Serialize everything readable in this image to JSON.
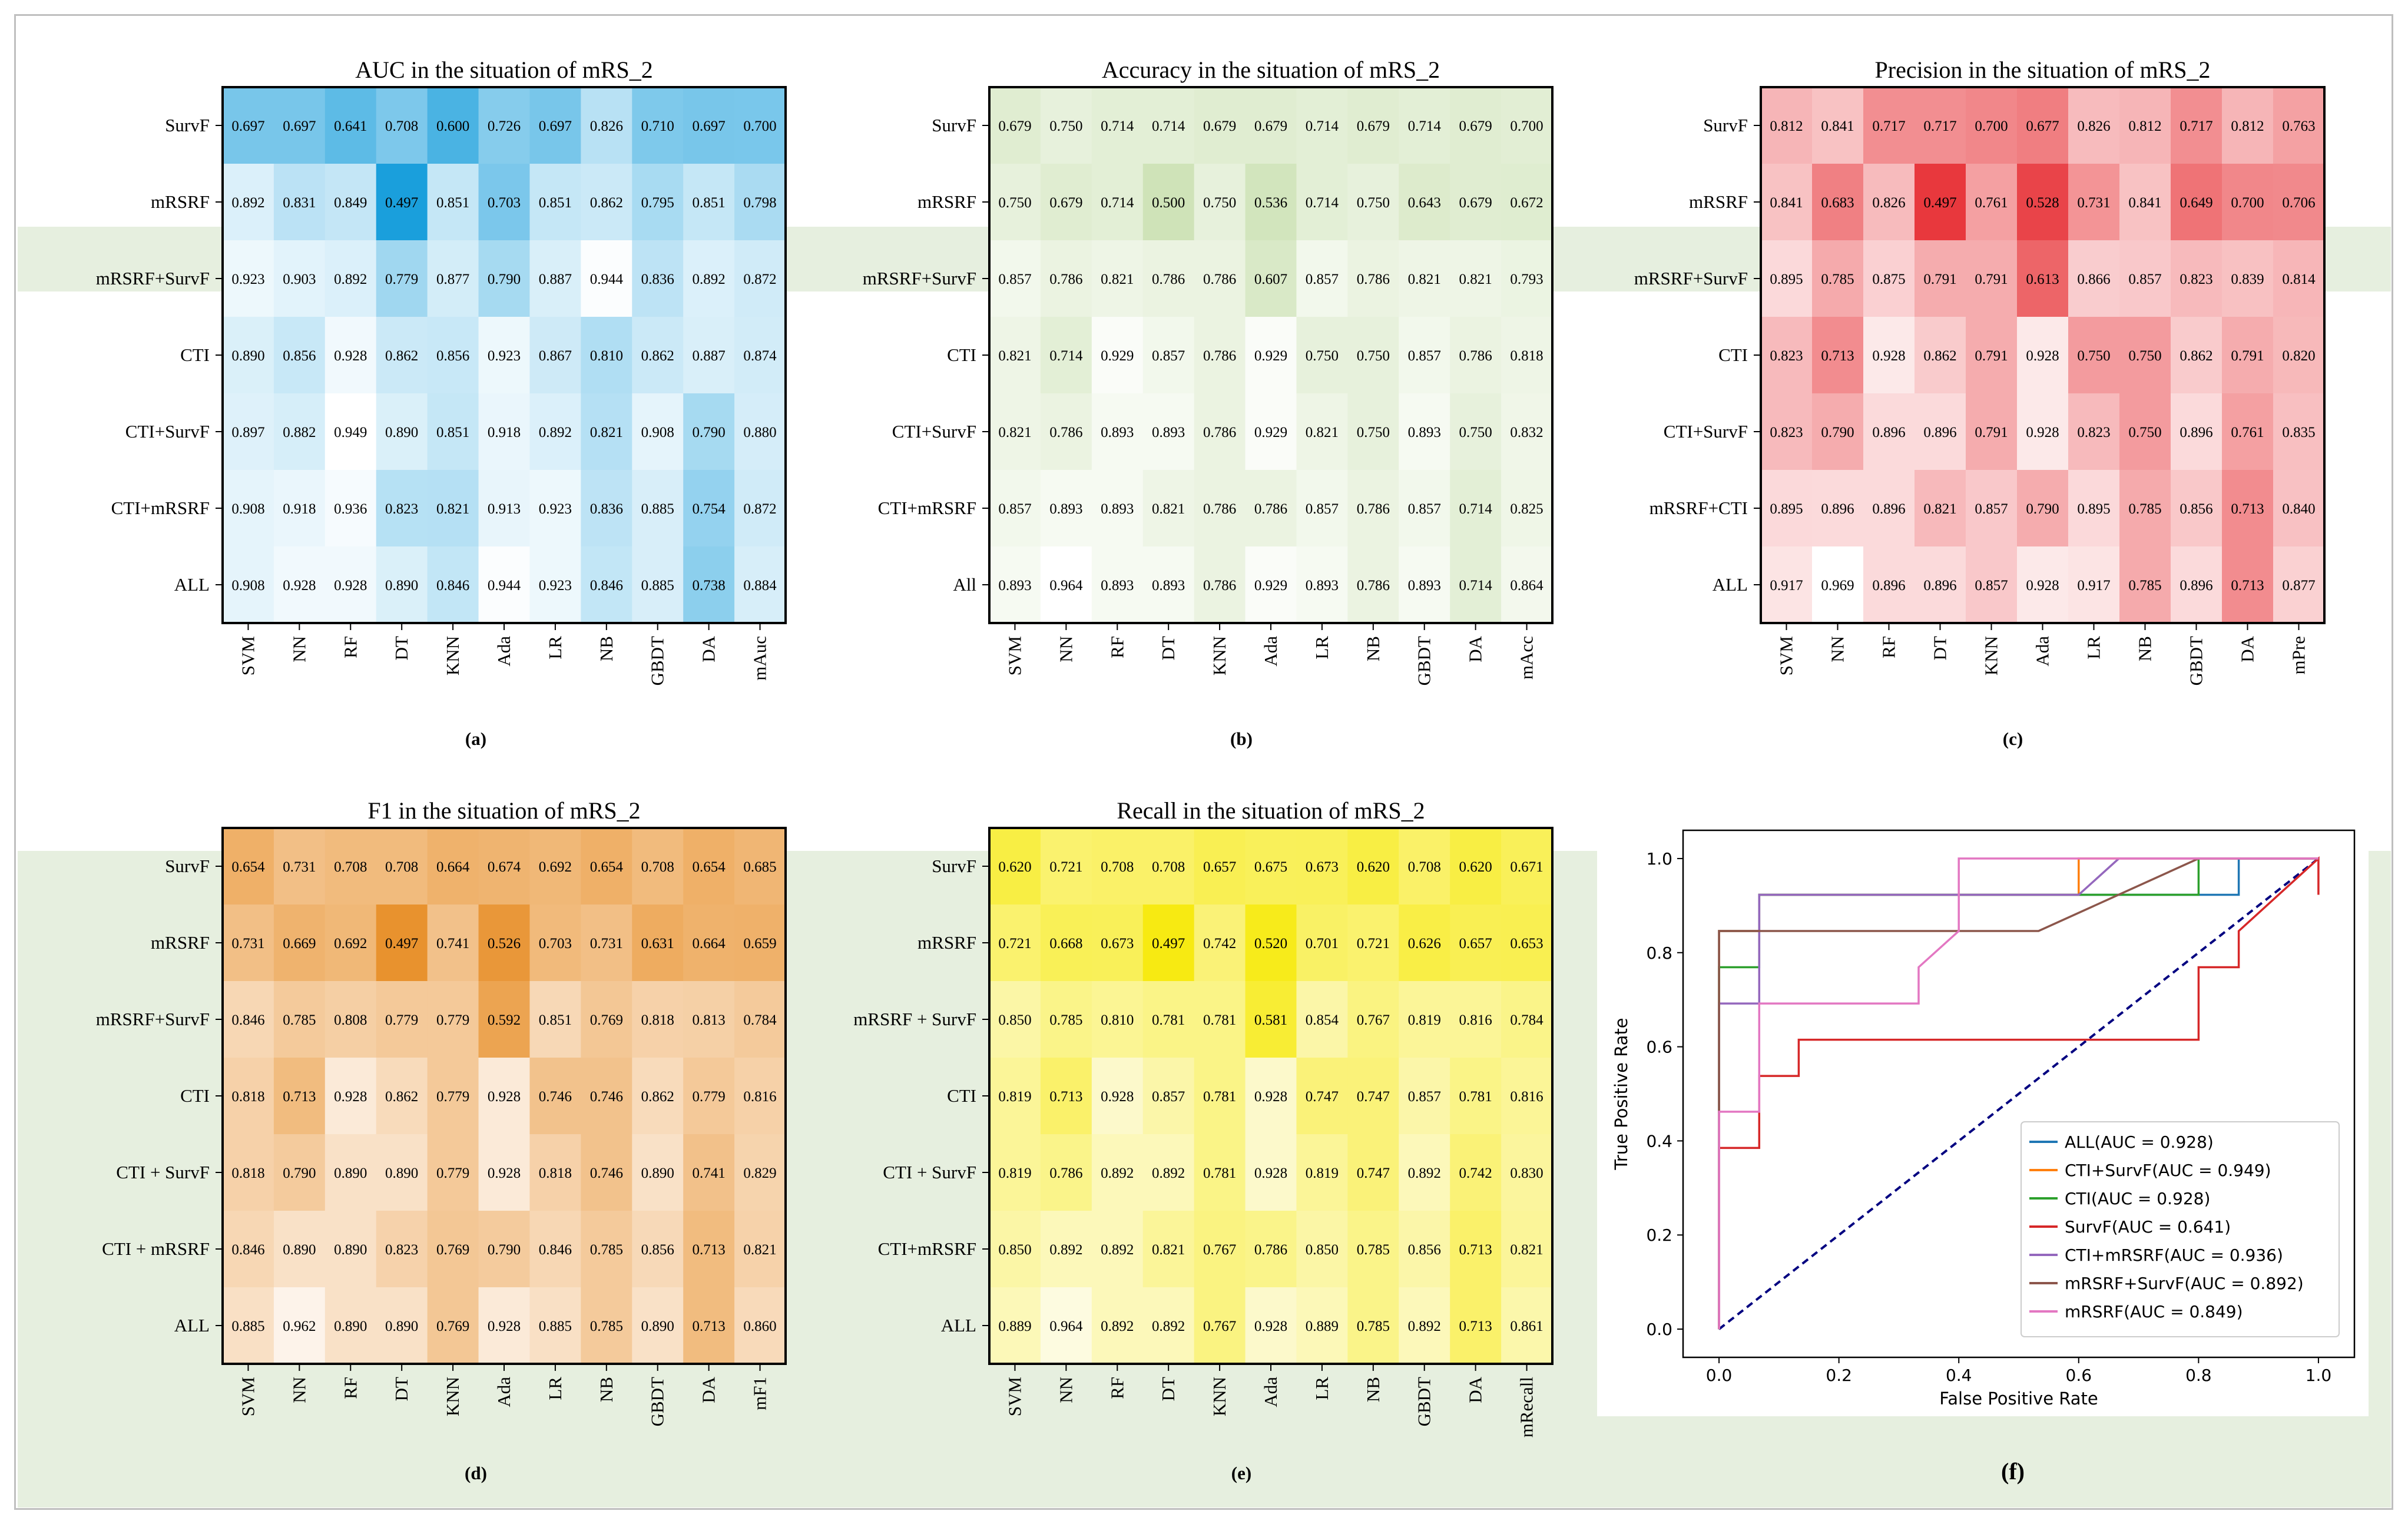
{
  "chart_data": [
    {
      "type": "heatmap",
      "title": "AUC in the situation of mRS_2",
      "panel_label": "(a)",
      "rows": [
        "SurvF",
        "mRSRF",
        "mRSRF+SurvF",
        "CTI",
        "CTI+SurvF",
        "CTI+mRSRF",
        "ALL"
      ],
      "columns": [
        "SVM",
        "NN",
        "RF",
        "DT",
        "KNN",
        "Ada",
        "LR",
        "NB",
        "GBDT",
        "DA",
        "mAuc"
      ],
      "values": [
        [
          0.697,
          0.697,
          0.641,
          0.708,
          0.6,
          0.726,
          0.697,
          0.826,
          0.71,
          0.697,
          0.7
        ],
        [
          0.892,
          0.831,
          0.849,
          0.497,
          0.851,
          0.703,
          0.851,
          0.862,
          0.795,
          0.851,
          0.798
        ],
        [
          0.923,
          0.903,
          0.892,
          0.779,
          0.877,
          0.79,
          0.887,
          0.944,
          0.836,
          0.892,
          0.872
        ],
        [
          0.89,
          0.856,
          0.928,
          0.862,
          0.856,
          0.923,
          0.867,
          0.81,
          0.862,
          0.887,
          0.874
        ],
        [
          0.897,
          0.882,
          0.949,
          0.89,
          0.851,
          0.918,
          0.892,
          0.821,
          0.908,
          0.79,
          0.88
        ],
        [
          0.908,
          0.918,
          0.936,
          0.823,
          0.821,
          0.913,
          0.923,
          0.836,
          0.885,
          0.754,
          0.872
        ],
        [
          0.908,
          0.928,
          0.928,
          0.89,
          0.846,
          0.944,
          0.923,
          0.846,
          0.885,
          0.738,
          0.884
        ]
      ],
      "color_high": "#1a9fdc",
      "color_low": "#ffffff"
    },
    {
      "type": "heatmap",
      "title": "Accuracy in the situation of mRS_2",
      "panel_label": "(b)",
      "rows": [
        "SurvF",
        "mRSRF",
        "mRSRF+SurvF",
        "CTI",
        "CTI+SurvF",
        "CTI+mRSRF",
        "All"
      ],
      "columns": [
        "SVM",
        "NN",
        "RF",
        "DT",
        "KNN",
        "Ada",
        "LR",
        "NB",
        "GBDT",
        "DA",
        "mAcc"
      ],
      "values": [
        [
          0.679,
          0.75,
          0.714,
          0.714,
          0.679,
          0.679,
          0.714,
          0.679,
          0.714,
          0.679,
          0.7
        ],
        [
          0.75,
          0.679,
          0.714,
          0.5,
          0.75,
          0.536,
          0.714,
          0.75,
          0.643,
          0.679,
          0.672
        ],
        [
          0.857,
          0.786,
          0.821,
          0.786,
          0.786,
          0.607,
          0.857,
          0.786,
          0.821,
          0.821,
          0.793
        ],
        [
          0.821,
          0.714,
          0.929,
          0.857,
          0.786,
          0.929,
          0.75,
          0.75,
          0.857,
          0.786,
          0.818
        ],
        [
          0.821,
          0.786,
          0.893,
          0.893,
          0.786,
          0.929,
          0.821,
          0.75,
          0.893,
          0.75,
          0.832
        ],
        [
          0.857,
          0.893,
          0.893,
          0.821,
          0.786,
          0.786,
          0.857,
          0.786,
          0.857,
          0.714,
          0.825
        ],
        [
          0.893,
          0.964,
          0.893,
          0.893,
          0.786,
          0.929,
          0.893,
          0.786,
          0.893,
          0.714,
          0.864
        ]
      ],
      "color_high": "#cfe3b8",
      "color_low": "#ffffff"
    },
    {
      "type": "heatmap",
      "title": "Precision in the situation of mRS_2",
      "panel_label": "(c)",
      "rows": [
        "SurvF",
        "mRSRF",
        "mRSRF+SurvF",
        "CTI",
        "CTI+SurvF",
        "mRSRF+CTI",
        "ALL"
      ],
      "columns": [
        "SVM",
        "NN",
        "RF",
        "DT",
        "KNN",
        "Ada",
        "LR",
        "NB",
        "GBDT",
        "DA",
        "mPre"
      ],
      "values": [
        [
          0.812,
          0.841,
          0.717,
          0.717,
          0.7,
          0.677,
          0.826,
          0.812,
          0.717,
          0.812,
          0.763
        ],
        [
          0.841,
          0.683,
          0.826,
          0.497,
          0.761,
          0.528,
          0.731,
          0.841,
          0.649,
          0.7,
          0.706
        ],
        [
          0.895,
          0.785,
          0.875,
          0.791,
          0.791,
          0.613,
          0.866,
          0.857,
          0.823,
          0.839,
          0.814
        ],
        [
          0.823,
          0.713,
          0.928,
          0.862,
          0.791,
          0.928,
          0.75,
          0.75,
          0.862,
          0.791,
          0.82
        ],
        [
          0.823,
          0.79,
          0.896,
          0.896,
          0.791,
          0.928,
          0.823,
          0.75,
          0.896,
          0.761,
          0.835
        ],
        [
          0.895,
          0.896,
          0.896,
          0.821,
          0.857,
          0.79,
          0.895,
          0.785,
          0.856,
          0.713,
          0.84
        ],
        [
          0.917,
          0.969,
          0.896,
          0.896,
          0.857,
          0.928,
          0.917,
          0.785,
          0.896,
          0.713,
          0.877
        ]
      ],
      "color_high": "#e8383d",
      "color_low": "#ffffff"
    },
    {
      "type": "heatmap",
      "title": "F1 in the situation of mRS_2",
      "panel_label": "(d)",
      "rows": [
        "SurvF",
        "mRSRF",
        "mRSRF+SurvF",
        "CTI",
        "CTI + SurvF",
        "CTI + mRSRF",
        "ALL"
      ],
      "columns": [
        "SVM",
        "NN",
        "RF",
        "DT",
        "KNN",
        "Ada",
        "LR",
        "NB",
        "GBDT",
        "DA",
        "mF1"
      ],
      "values": [
        [
          0.654,
          0.731,
          0.708,
          0.708,
          0.664,
          0.674,
          0.692,
          0.654,
          0.708,
          0.654,
          0.685
        ],
        [
          0.731,
          0.669,
          0.692,
          0.497,
          0.741,
          0.526,
          0.703,
          0.731,
          0.631,
          0.664,
          0.659
        ],
        [
          0.846,
          0.785,
          0.808,
          0.779,
          0.779,
          0.592,
          0.851,
          0.769,
          0.818,
          0.813,
          0.784
        ],
        [
          0.818,
          0.713,
          0.928,
          0.862,
          0.779,
          0.928,
          0.746,
          0.746,
          0.862,
          0.779,
          0.816
        ],
        [
          0.818,
          0.79,
          0.89,
          0.89,
          0.779,
          0.928,
          0.818,
          0.746,
          0.89,
          0.741,
          0.829
        ],
        [
          0.846,
          0.89,
          0.89,
          0.823,
          0.769,
          0.79,
          0.846,
          0.785,
          0.856,
          0.713,
          0.821
        ],
        [
          0.885,
          0.962,
          0.89,
          0.89,
          0.769,
          0.928,
          0.885,
          0.785,
          0.89,
          0.713,
          0.86
        ]
      ],
      "color_high": "#e8922e",
      "color_low": "#fdf3ea"
    },
    {
      "type": "heatmap",
      "title": "Recall in the situation of mRS_2",
      "panel_label": "(e)",
      "rows": [
        "SurvF",
        "mRSRF",
        "mRSRF + SurvF",
        "CTI",
        "CTI + SurvF",
        "CTI+mRSRF",
        "ALL"
      ],
      "columns": [
        "SVM",
        "NN",
        "RF",
        "DT",
        "KNN",
        "Ada",
        "LR",
        "NB",
        "GBDT",
        "DA",
        "mRecall"
      ],
      "values": [
        [
          0.62,
          0.721,
          0.708,
          0.708,
          0.657,
          0.675,
          0.673,
          0.62,
          0.708,
          0.62,
          0.671
        ],
        [
          0.721,
          0.668,
          0.673,
          0.497,
          0.742,
          0.52,
          0.701,
          0.721,
          0.626,
          0.657,
          0.653
        ],
        [
          0.85,
          0.785,
          0.81,
          0.781,
          0.781,
          0.581,
          0.854,
          0.767,
          0.819,
          0.816,
          0.784
        ],
        [
          0.819,
          0.713,
          0.928,
          0.857,
          0.781,
          0.928,
          0.747,
          0.747,
          0.857,
          0.781,
          0.816
        ],
        [
          0.819,
          0.786,
          0.892,
          0.892,
          0.781,
          0.928,
          0.819,
          0.747,
          0.892,
          0.742,
          0.83
        ],
        [
          0.85,
          0.892,
          0.892,
          0.821,
          0.767,
          0.786,
          0.85,
          0.785,
          0.856,
          0.713,
          0.821
        ],
        [
          0.889,
          0.964,
          0.892,
          0.892,
          0.767,
          0.928,
          0.889,
          0.785,
          0.892,
          0.713,
          0.861
        ]
      ],
      "color_high": "#f7ea12",
      "color_low": "#fdfbe0"
    },
    {
      "type": "line",
      "subtype": "roc",
      "panel_label": "(f)",
      "xlabel": "False Positive Rate",
      "ylabel": "True Positive Rate",
      "xlim": [
        -0.06,
        1.06
      ],
      "ylim": [
        -0.06,
        1.06
      ],
      "xticks": [
        "0.0",
        "0.2",
        "0.4",
        "0.6",
        "0.8",
        "1.0"
      ],
      "yticks": [
        "0.0",
        "0.2",
        "0.4",
        "0.6",
        "0.8",
        "1.0"
      ],
      "legend_position": "lower-right",
      "series": [
        {
          "name": "ALL(AUC = 0.928)",
          "color": "#1f77b4",
          "points": [
            [
              0,
              0
            ],
            [
              0,
              0.846
            ],
            [
              0.067,
              0.846
            ],
            [
              0.067,
              0.923
            ],
            [
              0.867,
              0.923
            ],
            [
              0.867,
              1
            ],
            [
              1,
              1
            ]
          ]
        },
        {
          "name": "CTI+SurvF(AUC = 0.949)",
          "color": "#ff7f0e",
          "points": [
            [
              0,
              0
            ],
            [
              0,
              0.846
            ],
            [
              0.067,
              0.846
            ],
            [
              0.067,
              0.923
            ],
            [
              0.6,
              0.923
            ],
            [
              0.6,
              1
            ],
            [
              1,
              1
            ]
          ]
        },
        {
          "name": "CTI(AUC = 0.928)",
          "color": "#2ca02c",
          "points": [
            [
              0,
              0
            ],
            [
              0,
              0.769
            ],
            [
              0.067,
              0.769
            ],
            [
              0.067,
              0.923
            ],
            [
              0.8,
              0.923
            ],
            [
              0.8,
              1
            ],
            [
              1,
              1
            ]
          ]
        },
        {
          "name": "SurvF(AUC = 0.641)",
          "color": "#d62728",
          "points": [
            [
              0,
              0
            ],
            [
              0,
              0.385
            ],
            [
              0.067,
              0.385
            ],
            [
              0.067,
              0.538
            ],
            [
              0.133,
              0.538
            ],
            [
              0.133,
              0.615
            ],
            [
              0.8,
              0.615
            ],
            [
              0.8,
              0.769
            ],
            [
              0.867,
              0.769
            ],
            [
              0.867,
              0.846
            ],
            [
              1,
              1
            ],
            [
              1,
              0.923
            ]
          ]
        },
        {
          "name": "CTI+mRSRF(AUC = 0.936)",
          "color": "#9467bd",
          "points": [
            [
              0,
              0
            ],
            [
              0,
              0.692
            ],
            [
              0.067,
              0.692
            ],
            [
              0.067,
              0.923
            ],
            [
              0.6,
              0.923
            ],
            [
              0.667,
              1
            ],
            [
              1,
              1
            ]
          ]
        },
        {
          "name": "mRSRF+SurvF(AUC = 0.892)",
          "color": "#8c564b",
          "points": [
            [
              0,
              0
            ],
            [
              0,
              0.846
            ],
            [
              0.067,
              0.846
            ],
            [
              0.533,
              0.846
            ],
            [
              0.8,
              1
            ],
            [
              1,
              1
            ]
          ]
        },
        {
          "name": "mRSRF(AUC = 0.849)",
          "color": "#e377c2",
          "points": [
            [
              0,
              0
            ],
            [
              0,
              0.462
            ],
            [
              0.067,
              0.462
            ],
            [
              0.067,
              0.692
            ],
            [
              0.333,
              0.692
            ],
            [
              0.333,
              0.769
            ],
            [
              0.4,
              0.846
            ],
            [
              0.4,
              1
            ],
            [
              1,
              1
            ]
          ]
        }
      ],
      "diagonal": {
        "color": "#000080",
        "style": "dashed"
      }
    }
  ]
}
